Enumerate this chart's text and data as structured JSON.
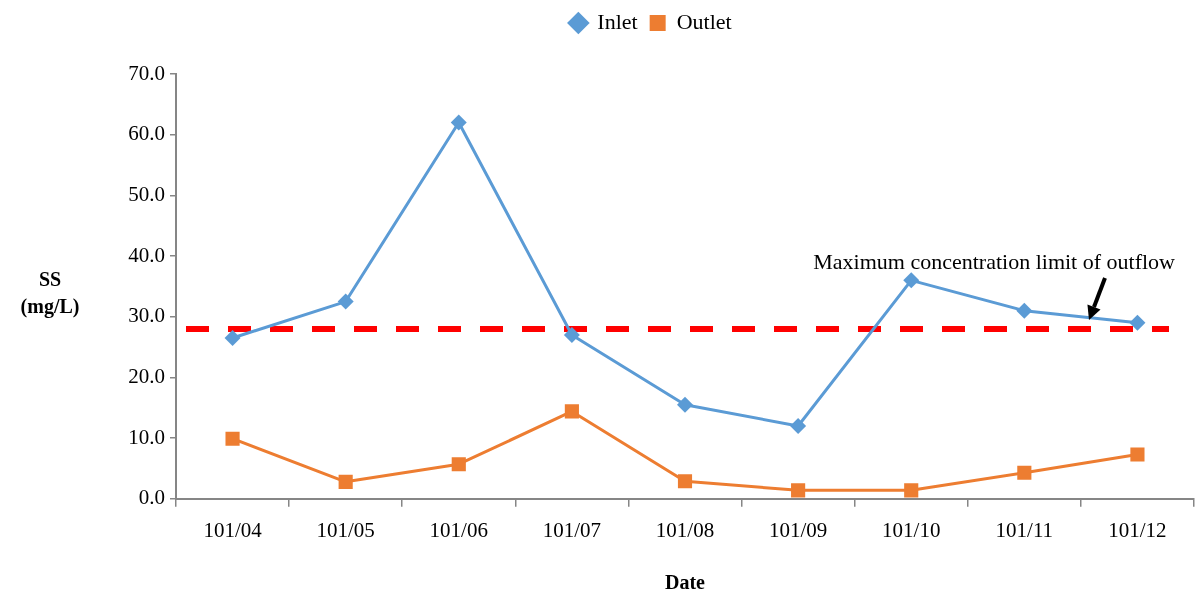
{
  "chart_data": {
    "type": "line",
    "xlabel": "Date",
    "ylabel": "SS (mg/L)",
    "categories": [
      "101/04",
      "101/05",
      "101/06",
      "101/07",
      "101/08",
      "101/09",
      "101/10",
      "101/11",
      "101/12"
    ],
    "series": [
      {
        "name": "Inlet",
        "color": "#5b9bd5",
        "marker": "diamond",
        "values": [
          26.5,
          32.5,
          62.0,
          27.0,
          15.5,
          12.0,
          36.0,
          31.0,
          29.0
        ]
      },
      {
        "name": "Outlet",
        "color": "#ed7d31",
        "marker": "square",
        "values": [
          9.9,
          2.8,
          5.7,
          14.4,
          2.9,
          1.4,
          1.4,
          4.3,
          7.3
        ]
      }
    ],
    "ylim": [
      0,
      70
    ],
    "yticks": [
      {
        "value": 0,
        "label": "0.0"
      },
      {
        "value": 10,
        "label": "10.0"
      },
      {
        "value": 20,
        "label": "20.0"
      },
      {
        "value": 30,
        "label": "30.0"
      },
      {
        "value": 40,
        "label": "40.0"
      },
      {
        "value": 50,
        "label": "50.0"
      },
      {
        "value": 60,
        "label": "60.0"
      },
      {
        "value": 70,
        "label": "70.0"
      }
    ],
    "ref_lines": [
      {
        "axis": "y",
        "value": 28,
        "label": "Maximum concentration limit of outflow",
        "color": "#ff0000",
        "line_style": "dashed"
      }
    ],
    "legend": "top"
  }
}
